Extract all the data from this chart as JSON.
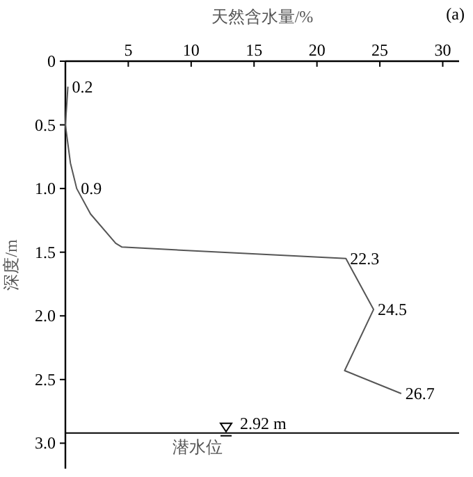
{
  "chart_data": {
    "type": "line",
    "xlabel": "天然含水量/%",
    "ylabel": "深度/m",
    "x": [
      0.2,
      0.0,
      0.4,
      0.9,
      2.0,
      4.0,
      4.5,
      22.3,
      24.5,
      22.2,
      26.7
    ],
    "series": [
      {
        "color": "#555555",
        "values": [
          0.2,
          0.5,
          0.8,
          1.0,
          1.2,
          1.43,
          1.46,
          1.55,
          1.95,
          2.43,
          2.61
        ]
      }
    ],
    "xlim": [
      0,
      31.3
    ],
    "xticks": [
      5,
      10,
      15,
      20,
      25,
      30
    ],
    "ylim": [
      3.2,
      0
    ],
    "yticks": [
      0,
      0.5,
      {
        "value": 1,
        "label": "1.0"
      },
      1.5,
      {
        "value": 2,
        "label": "2.0"
      },
      2.5,
      {
        "value": 3,
        "label": "3.0"
      }
    ],
    "ref_lines": [
      {
        "axis": "y",
        "value": 2.92,
        "label": "2.92 m",
        "color": "#000000"
      }
    ],
    "annotations": [
      "(a)",
      {
        "text": "潜水位",
        "x": 10.5,
        "y": 2.92
      },
      {
        "text": "0.2",
        "x": 0.2,
        "y": 0.2
      },
      {
        "text": "0.9",
        "x": 0.9,
        "y": 1.0
      },
      {
        "text": "22.3",
        "x": 22.3,
        "y": 1.55
      },
      {
        "text": "24.5",
        "x": 24.5,
        "y": 1.95
      },
      {
        "text": "26.7",
        "x": 26.7,
        "y": 2.61
      }
    ],
    "grid": false,
    "marker": "none",
    "line_style": "solid"
  }
}
